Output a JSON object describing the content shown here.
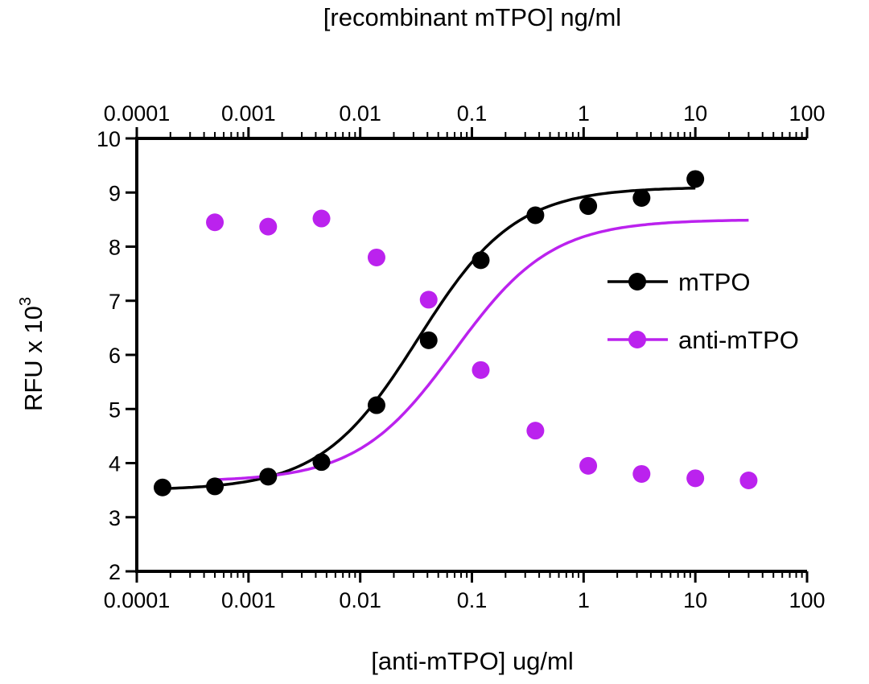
{
  "chart_data": {
    "type": "scatter",
    "top_xlabel": "[recombinant mTPO] ng/ml",
    "xlabel": "[anti-mTPO] ug/ml",
    "ylabel_main": "RFU x 10",
    "ylabel_exponent": "3",
    "xscale": "log",
    "xlim": [
      0.0001,
      100
    ],
    "ylim": [
      2,
      10
    ],
    "x_ticks": [
      "0.0001",
      "0.001",
      "0.01",
      "0.1",
      "1",
      "10",
      "100"
    ],
    "y_ticks": [
      "2",
      "3",
      "4",
      "5",
      "6",
      "7",
      "8",
      "9",
      "10"
    ],
    "grid": false,
    "legend_position": "right",
    "series": [
      {
        "name": "mTPO",
        "color": "#000000",
        "x": [
          0.00017,
          0.0005,
          0.0015,
          0.0045,
          0.014,
          0.041,
          0.12,
          0.37,
          1.1,
          3.3,
          10
        ],
        "y": [
          3.55,
          3.57,
          3.75,
          4.02,
          5.07,
          6.27,
          7.75,
          8.58,
          8.75,
          8.9,
          9.25
        ],
        "fit": {
          "bottom": 3.5,
          "top": 9.1,
          "ec50": 0.033,
          "hill": 1.0
        }
      },
      {
        "name": "anti-mTPO",
        "color": "#bb22ee",
        "x": [
          0.0005,
          0.0015,
          0.0045,
          0.014,
          0.041,
          0.12,
          0.37,
          1.1,
          3.3,
          10,
          30
        ],
        "y": [
          8.45,
          8.37,
          8.52,
          7.8,
          7.02,
          5.72,
          4.6,
          3.95,
          3.8,
          3.72,
          3.68
        ],
        "fit": {
          "bottom": 3.66,
          "top": 8.5,
          "ec50": 0.07,
          "hill": 1.0
        }
      }
    ]
  }
}
